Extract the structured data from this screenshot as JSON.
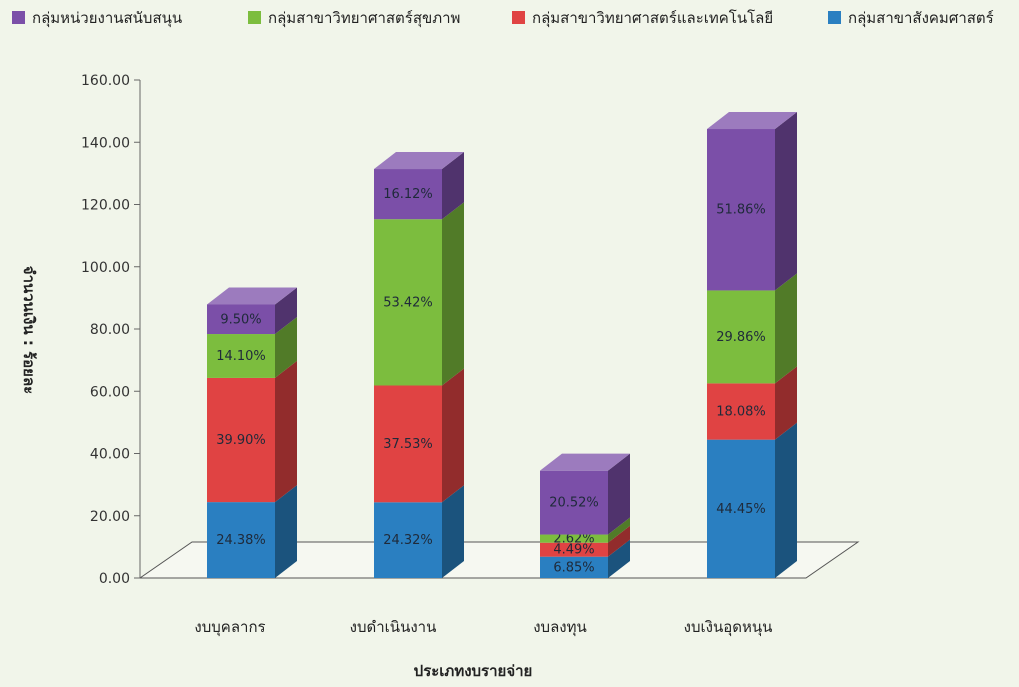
{
  "chart_data": {
    "type": "bar",
    "stacked": true,
    "three_d": true,
    "xlabel": "ประเภทงบรายจ่าย",
    "ylabel": "จำนวนเงิน : ร้อยละ",
    "ylim": [
      0,
      160
    ],
    "ytick_step": 20,
    "ytick_labels": [
      "0.00",
      "20.00",
      "40.00",
      "60.00",
      "80.00",
      "100.00",
      "120.00",
      "140.00",
      "160.00"
    ],
    "grid": false,
    "legend_position": "top",
    "categories": [
      "งบบุคลากร",
      "งบดำเนินงาน",
      "งบลงทุน",
      "งบเงินอุดหนุน"
    ],
    "series": [
      {
        "name": "กลุ่มสาขาสังคมศาสตร์",
        "color": "#2a7fc1",
        "values": [
          24.38,
          24.32,
          6.85,
          44.45
        ],
        "labels": [
          "24.38%",
          "24.32%",
          "6.85%",
          "44.45%"
        ]
      },
      {
        "name": "กลุ่มสาขาวิทยาศาสตร์และเทคโนโลยี",
        "color": "#e04343",
        "values": [
          39.9,
          37.53,
          4.49,
          18.08
        ],
        "labels": [
          "39.90%",
          "37.53%",
          "4.49%",
          "18.08%"
        ]
      },
      {
        "name": "กลุ่มสาขาวิทยาศาสตร์สุขภาพ",
        "color": "#7cbd3e",
        "values": [
          14.1,
          53.42,
          2.62,
          29.86
        ],
        "labels": [
          "14.10%",
          "53.42%",
          "2.62%",
          "29.86%"
        ]
      },
      {
        "name": "กลุ่มหน่วยงานสนับสนุน",
        "color": "#7b4fa8",
        "values": [
          9.5,
          16.12,
          20.52,
          51.86
        ],
        "labels": [
          "9.50%",
          "16.12%",
          "20.52%",
          "51.86%"
        ]
      }
    ],
    "legend_order": [
      3,
      2,
      1,
      0
    ]
  }
}
